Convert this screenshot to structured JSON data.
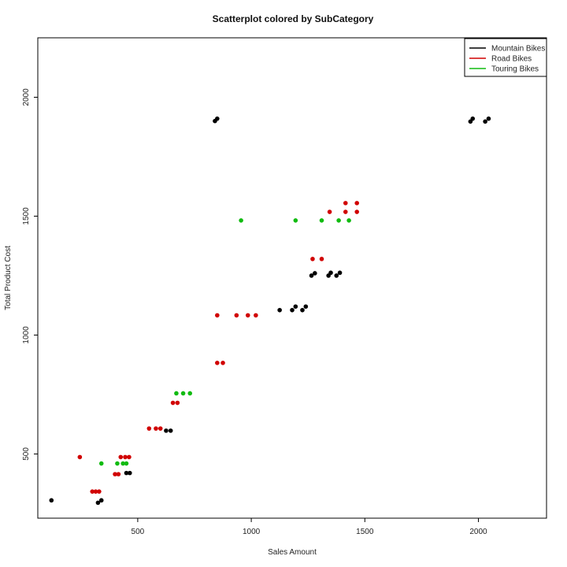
{
  "chart_data": {
    "type": "scatter",
    "title": "Scatterplot colored by SubCategory",
    "xlabel": "Sales Amount",
    "ylabel": "Total Product Cost",
    "xlim": [
      60,
      2300
    ],
    "ylim": [
      230,
      2250
    ],
    "x_ticks": [
      500,
      1000,
      1500,
      2000
    ],
    "y_ticks": [
      500,
      1000,
      1500,
      2000
    ],
    "grid": false,
    "legend_position": "top-right",
    "series": [
      {
        "name": "Mountain Bikes",
        "color": "#000000",
        "points": [
          [
            120,
            305
          ],
          [
            325,
            295
          ],
          [
            340,
            305
          ],
          [
            450,
            420
          ],
          [
            465,
            420
          ],
          [
            625,
            598
          ],
          [
            645,
            598
          ],
          [
            840,
            1900
          ],
          [
            850,
            1910
          ],
          [
            1125,
            1105
          ],
          [
            1180,
            1105
          ],
          [
            1195,
            1120
          ],
          [
            1225,
            1105
          ],
          [
            1240,
            1120
          ],
          [
            1265,
            1250
          ],
          [
            1280,
            1260
          ],
          [
            1340,
            1250
          ],
          [
            1350,
            1262
          ],
          [
            1375,
            1250
          ],
          [
            1390,
            1262
          ],
          [
            1965,
            1898
          ],
          [
            1975,
            1910
          ],
          [
            2030,
            1898
          ],
          [
            2045,
            1910
          ]
        ]
      },
      {
        "name": "Road Bikes",
        "color": "#d10000",
        "points": [
          [
            245,
            487
          ],
          [
            300,
            342
          ],
          [
            315,
            342
          ],
          [
            330,
            342
          ],
          [
            400,
            415
          ],
          [
            415,
            415
          ],
          [
            425,
            487
          ],
          [
            445,
            487
          ],
          [
            462,
            487
          ],
          [
            550,
            607
          ],
          [
            580,
            607
          ],
          [
            600,
            607
          ],
          [
            655,
            715
          ],
          [
            675,
            715
          ],
          [
            850,
            883
          ],
          [
            875,
            883
          ],
          [
            850,
            1083
          ],
          [
            935,
            1083
          ],
          [
            985,
            1083
          ],
          [
            1020,
            1083
          ],
          [
            1270,
            1320
          ],
          [
            1310,
            1320
          ],
          [
            1345,
            1518
          ],
          [
            1415,
            1518
          ],
          [
            1465,
            1518
          ],
          [
            1415,
            1555
          ],
          [
            1465,
            1555
          ]
        ]
      },
      {
        "name": "Touring Bikes",
        "color": "#11bb11",
        "points": [
          [
            340,
            460
          ],
          [
            410,
            460
          ],
          [
            435,
            460
          ],
          [
            450,
            460
          ],
          [
            670,
            755
          ],
          [
            700,
            755
          ],
          [
            730,
            755
          ],
          [
            955,
            1482
          ],
          [
            1195,
            1482
          ],
          [
            1310,
            1482
          ],
          [
            1385,
            1482
          ],
          [
            1430,
            1482
          ]
        ]
      }
    ]
  }
}
